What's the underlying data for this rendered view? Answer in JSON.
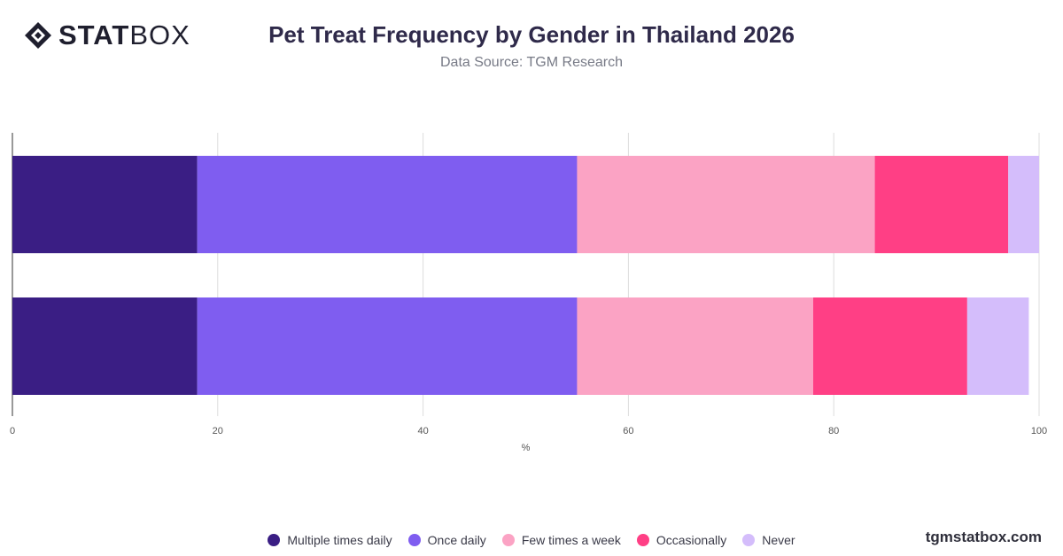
{
  "brand": {
    "logo_bold": "STAT",
    "logo_light": "BOX",
    "footer": "tgmstatbox.com"
  },
  "header": {
    "title": "Pet Treat Frequency by Gender in Thailand 2026",
    "subtitle": "Data Source: TGM Research"
  },
  "chart_data": {
    "type": "bar",
    "orientation": "horizontal",
    "stacked": true,
    "title": "Pet Treat Frequency by Gender in Thailand 2026",
    "subtitle": "Data Source: TGM Research",
    "xlabel": "%",
    "ylabel": "",
    "xlim": [
      0,
      100
    ],
    "x_ticks": [
      0,
      20,
      40,
      60,
      80,
      100
    ],
    "grid": true,
    "legend_position": "bottom",
    "categories": [
      "",
      ""
    ],
    "series": [
      {
        "name": "Multiple times daily",
        "color": "#3a1e84",
        "values": [
          18,
          18
        ]
      },
      {
        "name": "Once daily",
        "color": "#7f5df0",
        "values": [
          37,
          37
        ]
      },
      {
        "name": "Few times a week",
        "color": "#fba3c4",
        "values": [
          29,
          23
        ]
      },
      {
        "name": "Occasionally",
        "color": "#ff3f85",
        "values": [
          13,
          15
        ]
      },
      {
        "name": "Never",
        "color": "#d4bdfb",
        "values": [
          3,
          6
        ]
      }
    ]
  }
}
